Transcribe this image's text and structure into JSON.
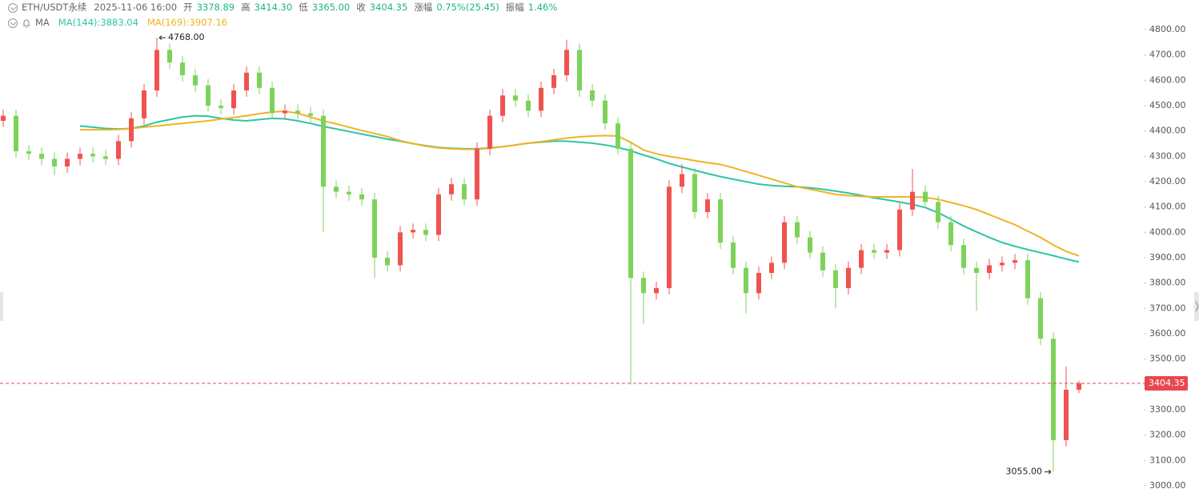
{
  "header": {
    "symbol": "ETH/USDT永续",
    "time": "2025-11-06 16:00",
    "fields": [
      {
        "label": "开",
        "value": "3378.89"
      },
      {
        "label": "高",
        "value": "3414.30"
      },
      {
        "label": "低",
        "value": "3365.00"
      },
      {
        "label": "收",
        "value": "3404.35"
      },
      {
        "label": "涨幅",
        "value": "0.75%(25.45)"
      },
      {
        "label": "振幅",
        "value": "1.46%"
      }
    ],
    "indicator": "MA"
  },
  "chart_data": {
    "type": "candlestick",
    "up_color": "#ef5350",
    "down_color": "#7dd35a",
    "open": [
      4440,
      4460,
      4320,
      4310,
      4290,
      4260,
      4290,
      4310,
      4300,
      4290,
      4360,
      4450,
      4560,
      4720,
      4670,
      4620,
      4580,
      4500,
      4490,
      4560,
      4630,
      4570,
      4470,
      4480,
      4470,
      4460,
      4180,
      4160,
      4150,
      4130,
      3900,
      3870,
      4000,
      4010,
      3990,
      4150,
      4190,
      4130,
      4330,
      4460,
      4540,
      4520,
      4480,
      4570,
      4620,
      4720,
      4560,
      4520,
      4430,
      4330,
      3820,
      3760,
      3780,
      4180,
      4230,
      4080,
      4130,
      3960,
      3860,
      3760,
      3840,
      3880,
      4040,
      3980,
      3920,
      3850,
      3780,
      3860,
      3930,
      3920,
      3930,
      4090,
      4160,
      4120,
      4040,
      3950,
      3860,
      3840,
      3870,
      3880,
      3890,
      3740,
      3580,
      3180,
      3378.89
    ],
    "high": [
      4485,
      4485,
      4345,
      4335,
      4315,
      4315,
      4335,
      4335,
      4325,
      4385,
      4475,
      4585,
      4768,
      4745,
      4695,
      4645,
      4605,
      4525,
      4585,
      4655,
      4655,
      4595,
      4505,
      4505,
      4495,
      4485,
      4205,
      4185,
      4175,
      4155,
      3925,
      4025,
      4035,
      4035,
      4175,
      4215,
      4215,
      4355,
      4485,
      4565,
      4565,
      4545,
      4595,
      4645,
      4760,
      4745,
      4585,
      4545,
      4455,
      4355,
      3845,
      3805,
      4205,
      4270,
      4255,
      4155,
      4155,
      3985,
      3885,
      3865,
      3905,
      4065,
      4065,
      4005,
      3945,
      3875,
      3885,
      3955,
      3955,
      3955,
      4115,
      4250,
      4185,
      4145,
      4065,
      3975,
      3885,
      3895,
      3905,
      3915,
      3915,
      3765,
      3605,
      3470,
      3414.3
    ],
    "low": [
      4415,
      4295,
      4285,
      4265,
      4225,
      4235,
      4265,
      4275,
      4265,
      4265,
      4335,
      4425,
      4535,
      4645,
      4595,
      4555,
      4475,
      4465,
      4465,
      4535,
      4545,
      4445,
      4445,
      4445,
      4435,
      4000,
      4135,
      4125,
      4105,
      3820,
      3845,
      3845,
      3975,
      3965,
      3965,
      4125,
      4105,
      4105,
      4305,
      4435,
      4495,
      4455,
      4455,
      4545,
      4595,
      4535,
      4495,
      4405,
      4305,
      3400,
      3640,
      3735,
      3755,
      4155,
      4055,
      4055,
      3935,
      3835,
      3680,
      3735,
      3815,
      3855,
      3955,
      3895,
      3825,
      3700,
      3755,
      3835,
      3895,
      3895,
      3905,
      4065,
      4095,
      4015,
      3925,
      3835,
      3690,
      3815,
      3845,
      3855,
      3715,
      3555,
      3055,
      3155,
      3365
    ],
    "close": [
      4460,
      4320,
      4310,
      4290,
      4260,
      4290,
      4310,
      4300,
      4290,
      4360,
      4450,
      4560,
      4720,
      4670,
      4620,
      4580,
      4500,
      4490,
      4560,
      4630,
      4570,
      4470,
      4480,
      4470,
      4460,
      4180,
      4160,
      4150,
      4130,
      3900,
      3870,
      4000,
      4010,
      3990,
      4150,
      4190,
      4130,
      4330,
      4460,
      4540,
      4520,
      4480,
      4570,
      4620,
      4720,
      4560,
      4520,
      4430,
      4330,
      3820,
      3760,
      3780,
      4180,
      4230,
      4080,
      4130,
      3960,
      3860,
      3760,
      3840,
      3880,
      4040,
      3980,
      3920,
      3850,
      3780,
      3860,
      3930,
      3920,
      3930,
      4090,
      4160,
      4120,
      4040,
      3950,
      3860,
      3840,
      3870,
      3880,
      3890,
      3740,
      3580,
      3180,
      3378.89,
      3404.35
    ],
    "series": [
      {
        "name": "MA(144):3883.04",
        "color": "#2ec4a6",
        "values": [
          null,
          null,
          null,
          null,
          null,
          null,
          4420,
          4415,
          4410,
          4408,
          4410,
          4420,
          4435,
          4445,
          4455,
          4460,
          4458,
          4450,
          4443,
          4440,
          4445,
          4450,
          4448,
          4440,
          4430,
          4418,
          4408,
          4398,
          4388,
          4378,
          4368,
          4360,
          4350,
          4342,
          4335,
          4332,
          4330,
          4330,
          4333,
          4338,
          4345,
          4352,
          4356,
          4360,
          4360,
          4356,
          4352,
          4345,
          4335,
          4322,
          4305,
          4290,
          4272,
          4258,
          4245,
          4232,
          4220,
          4210,
          4200,
          4190,
          4185,
          4182,
          4180,
          4176,
          4170,
          4163,
          4155,
          4146,
          4136,
          4128,
          4120,
          4110,
          4098,
          4078,
          4052,
          4025,
          4002,
          3980,
          3960,
          3945,
          3932,
          3920,
          3908,
          3895,
          3883.04
        ]
      },
      {
        "name": "MA(169):3907.16",
        "color": "#f0b323",
        "values": [
          null,
          null,
          null,
          null,
          null,
          null,
          4405,
          4405,
          4405,
          4406,
          4410,
          4415,
          4420,
          4425,
          4430,
          4435,
          4440,
          4447,
          4453,
          4460,
          4468,
          4475,
          4478,
          4470,
          4455,
          4440,
          4428,
          4415,
          4402,
          4390,
          4378,
          4362,
          4350,
          4340,
          4333,
          4330,
          4328,
          4328,
          4332,
          4338,
          4345,
          4352,
          4358,
          4365,
          4372,
          4377,
          4380,
          4382,
          4380,
          4355,
          4325,
          4310,
          4300,
          4292,
          4283,
          4275,
          4268,
          4255,
          4240,
          4225,
          4210,
          4195,
          4180,
          4170,
          4160,
          4150,
          4145,
          4142,
          4140,
          4140,
          4140,
          4140,
          4138,
          4130,
          4118,
          4105,
          4090,
          4070,
          4050,
          4030,
          4005,
          3980,
          3950,
          3925,
          3907.16
        ]
      }
    ],
    "ylim": [
      3000,
      4800
    ],
    "yticks": [
      {
        "value": 3000,
        "label": "3000.00"
      },
      {
        "value": 3100,
        "label": "3100.00"
      },
      {
        "value": 3200,
        "label": "3200.00"
      },
      {
        "value": 3300,
        "label": "3300.00"
      },
      {
        "value": 3400,
        "label": "3400.00"
      },
      {
        "value": 3500,
        "label": "3500.00"
      },
      {
        "value": 3600,
        "label": "3600.00"
      },
      {
        "value": 3700,
        "label": "3700.00"
      },
      {
        "value": 3800,
        "label": "3800.00"
      },
      {
        "value": 3900,
        "label": "3900.00"
      },
      {
        "value": 4000,
        "label": "4000.00"
      },
      {
        "value": 4100,
        "label": "4100.00"
      },
      {
        "value": 4200,
        "label": "4200.00"
      },
      {
        "value": 4300,
        "label": "4300.00"
      },
      {
        "value": 4400,
        "label": "4400.00"
      },
      {
        "value": 4500,
        "label": "4500.00"
      },
      {
        "value": 4600,
        "label": "4600.00"
      },
      {
        "value": 4700,
        "label": "4700.00"
      },
      {
        "value": 4800,
        "label": "4800.00"
      }
    ],
    "last_price": 3404.35,
    "last_price_color": "#e8474f",
    "annotations": [
      {
        "value": 4768,
        "label": "4768.00"
      },
      {
        "value": 3055,
        "label": "3055.00"
      }
    ]
  }
}
